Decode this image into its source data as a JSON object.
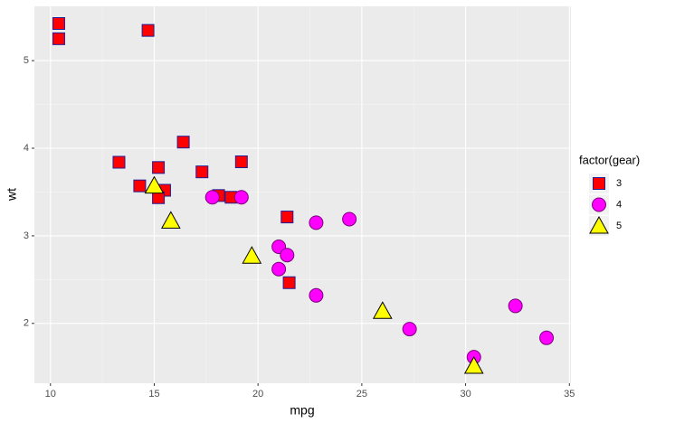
{
  "chart_data": {
    "type": "scatter",
    "x_label": "mpg",
    "y_label": "wt",
    "legend_title": "factor(gear)",
    "xlim": [
      9.225,
      35.075
    ],
    "ylim": [
      1.317,
      5.62
    ],
    "xticks": [
      10,
      15,
      20,
      25,
      30,
      35
    ],
    "yticks": [
      2,
      3,
      4,
      5
    ],
    "grid": true,
    "legend_position": "right",
    "series": [
      {
        "name": "3",
        "shape": "square",
        "color": "#ff0000",
        "stroke": "#1f1f9a",
        "x": [
          21.4,
          18.7,
          18.1,
          14.3,
          16.4,
          17.3,
          15.2,
          10.4,
          10.4,
          14.7,
          21.5,
          15.5,
          15.2,
          13.3,
          19.2
        ],
        "y": [
          3.215,
          3.44,
          3.46,
          3.57,
          4.07,
          3.73,
          3.78,
          5.25,
          5.424,
          5.345,
          2.465,
          3.52,
          3.435,
          3.84,
          3.845
        ]
      },
      {
        "name": "4",
        "shape": "circle",
        "color": "#ff00ff",
        "stroke": "#7a007a",
        "x": [
          21.0,
          21.0,
          22.8,
          24.4,
          22.8,
          19.2,
          17.8,
          32.4,
          30.4,
          33.9,
          27.3,
          21.4
        ],
        "y": [
          2.62,
          2.875,
          2.32,
          3.19,
          3.15,
          3.44,
          3.44,
          2.2,
          1.615,
          1.835,
          1.935,
          2.78
        ]
      },
      {
        "name": "5",
        "shape": "triangle",
        "color": "#ffff00",
        "stroke": "#000000",
        "x": [
          26.0,
          30.4,
          15.8,
          19.7,
          15.0
        ],
        "y": [
          2.14,
          1.513,
          3.17,
          2.77,
          3.57
        ]
      }
    ]
  }
}
